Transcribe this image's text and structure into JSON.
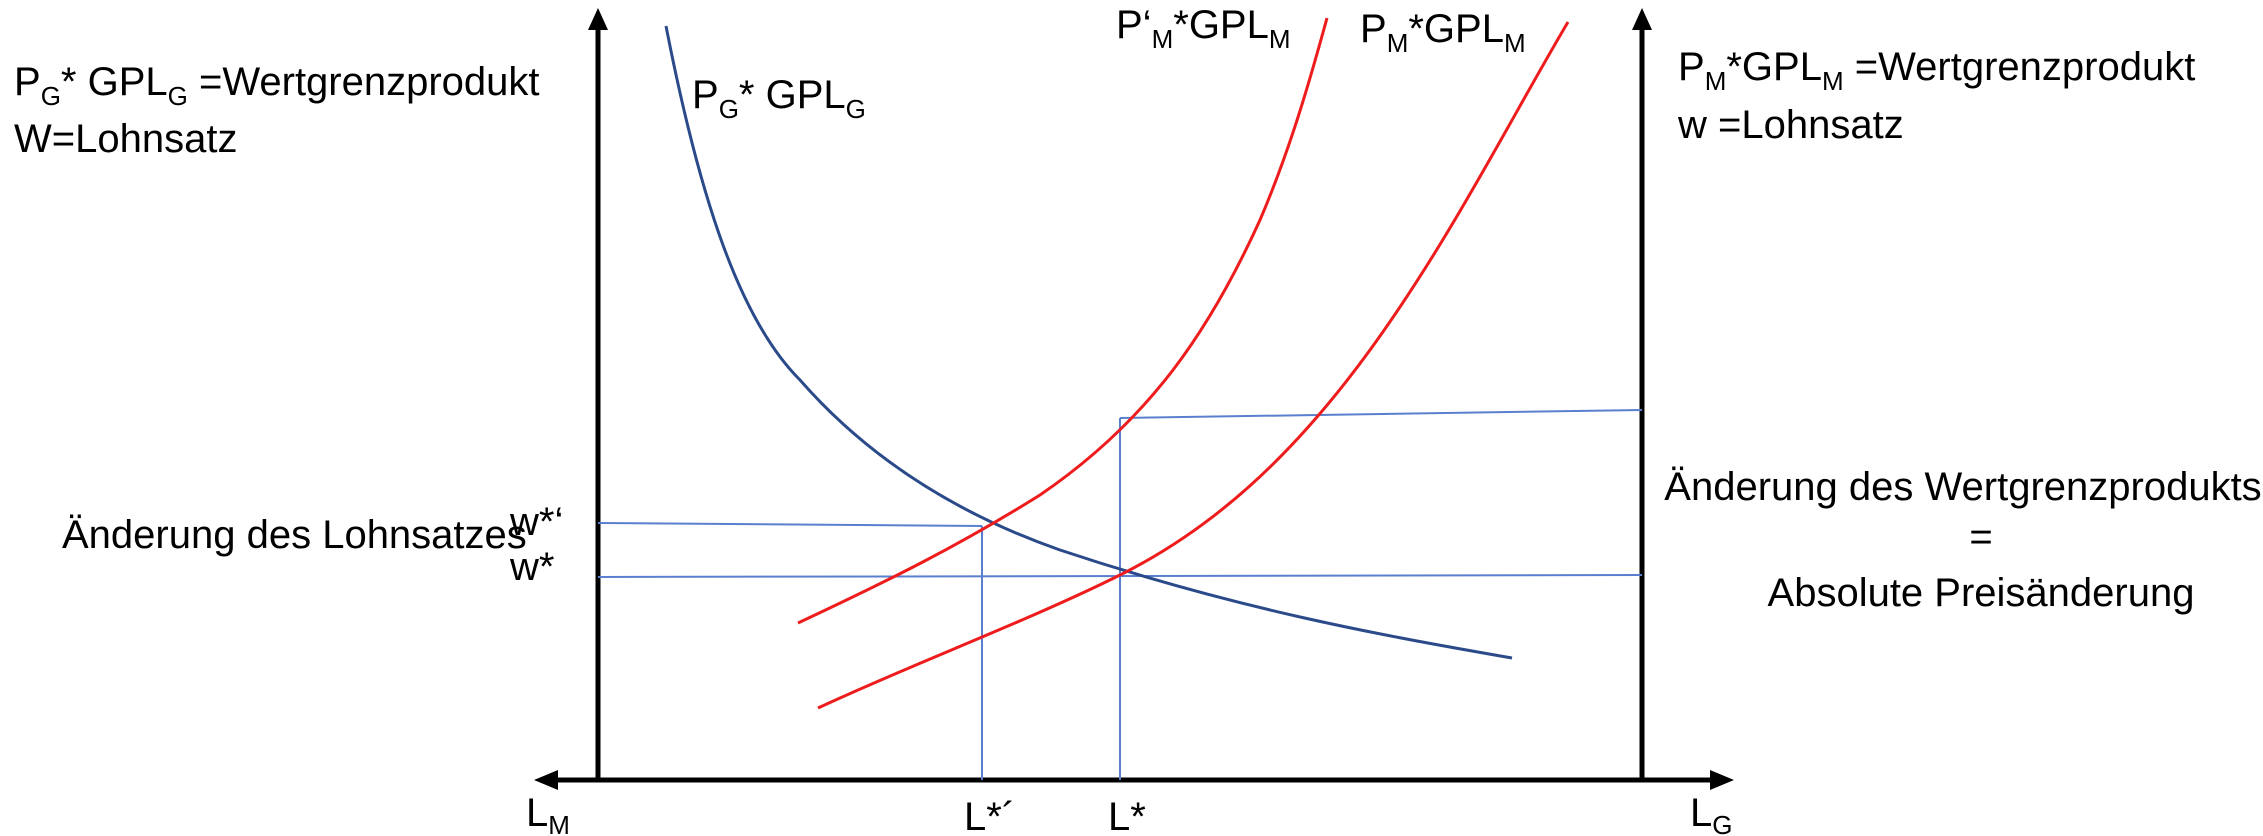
{
  "colors": {
    "axis": "#000000",
    "demand_curve": "#2a4a8a",
    "supply_curves": "#ee1c1c",
    "guide_lines": "#5b7fcf",
    "text": "#000000"
  },
  "left_header": {
    "line1_main": "P",
    "line1_sub": "G",
    "line1_mid": "* GPL",
    "line1_sub2": "G",
    "line1_end": " =Wertgrenzprodukt",
    "line2": "W=Lohnsatz"
  },
  "right_header": {
    "line1_main": "P",
    "line1_sub": "M",
    "line1_mid": "*GPL",
    "line1_sub2": "M",
    "line1_end": " =Wertgrenzprodukt",
    "line2": "w =Lohnsatz"
  },
  "curve_labels": {
    "demand": {
      "main": "P",
      "sub": "G",
      "mid": "* GPL",
      "sub2": "G"
    },
    "supply_shifted": {
      "main": "P‘",
      "sub": "M",
      "mid": "*GPL",
      "sub2": "M"
    },
    "supply_original": {
      "main": "P",
      "sub": "M",
      "mid": "*GPL",
      "sub2": "M"
    }
  },
  "wage_labels": {
    "change_text": "Änderung des Lohnsatzes",
    "w_new": "w*‘",
    "w_old": "w*"
  },
  "right_annotation": {
    "line1": "Änderung des Wertgrenzprodukts",
    "line2": "=",
    "line3": "Absolute Preisänderung"
  },
  "axis_labels": {
    "left": {
      "main": "L",
      "sub": "M"
    },
    "right": {
      "main": "L",
      "sub": "G"
    },
    "l_new": "L*´",
    "l_old": "L*"
  }
}
